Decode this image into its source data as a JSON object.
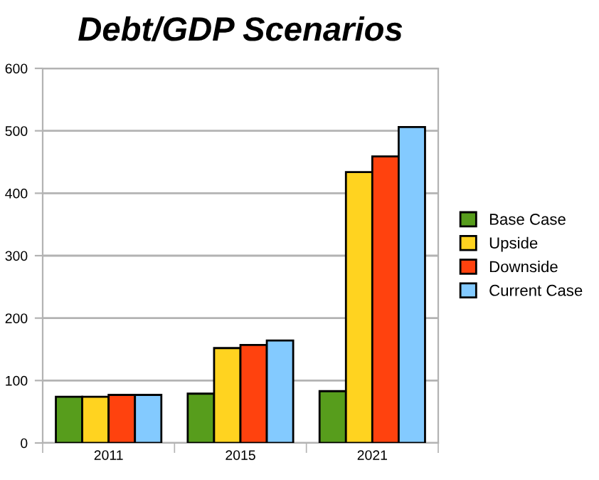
{
  "chart_data": {
    "type": "bar",
    "title": "Debt/GDP Scenarios",
    "categories": [
      "2011",
      "2015",
      "2021"
    ],
    "series": [
      {
        "name": "Base Case",
        "color": "#579d1c",
        "values": [
          74,
          79,
          83
        ]
      },
      {
        "name": "Upside",
        "color": "#ffd320",
        "values": [
          74,
          152,
          434
        ]
      },
      {
        "name": "Downside",
        "color": "#ff420e",
        "values": [
          77,
          157,
          459
        ]
      },
      {
        "name": "Current Case",
        "color": "#83caff",
        "values": [
          77,
          164,
          506
        ]
      }
    ],
    "ylim": [
      0,
      600
    ],
    "yticks": [
      0,
      100,
      200,
      300,
      400,
      500,
      600
    ],
    "grid": "y",
    "legend": "right"
  }
}
